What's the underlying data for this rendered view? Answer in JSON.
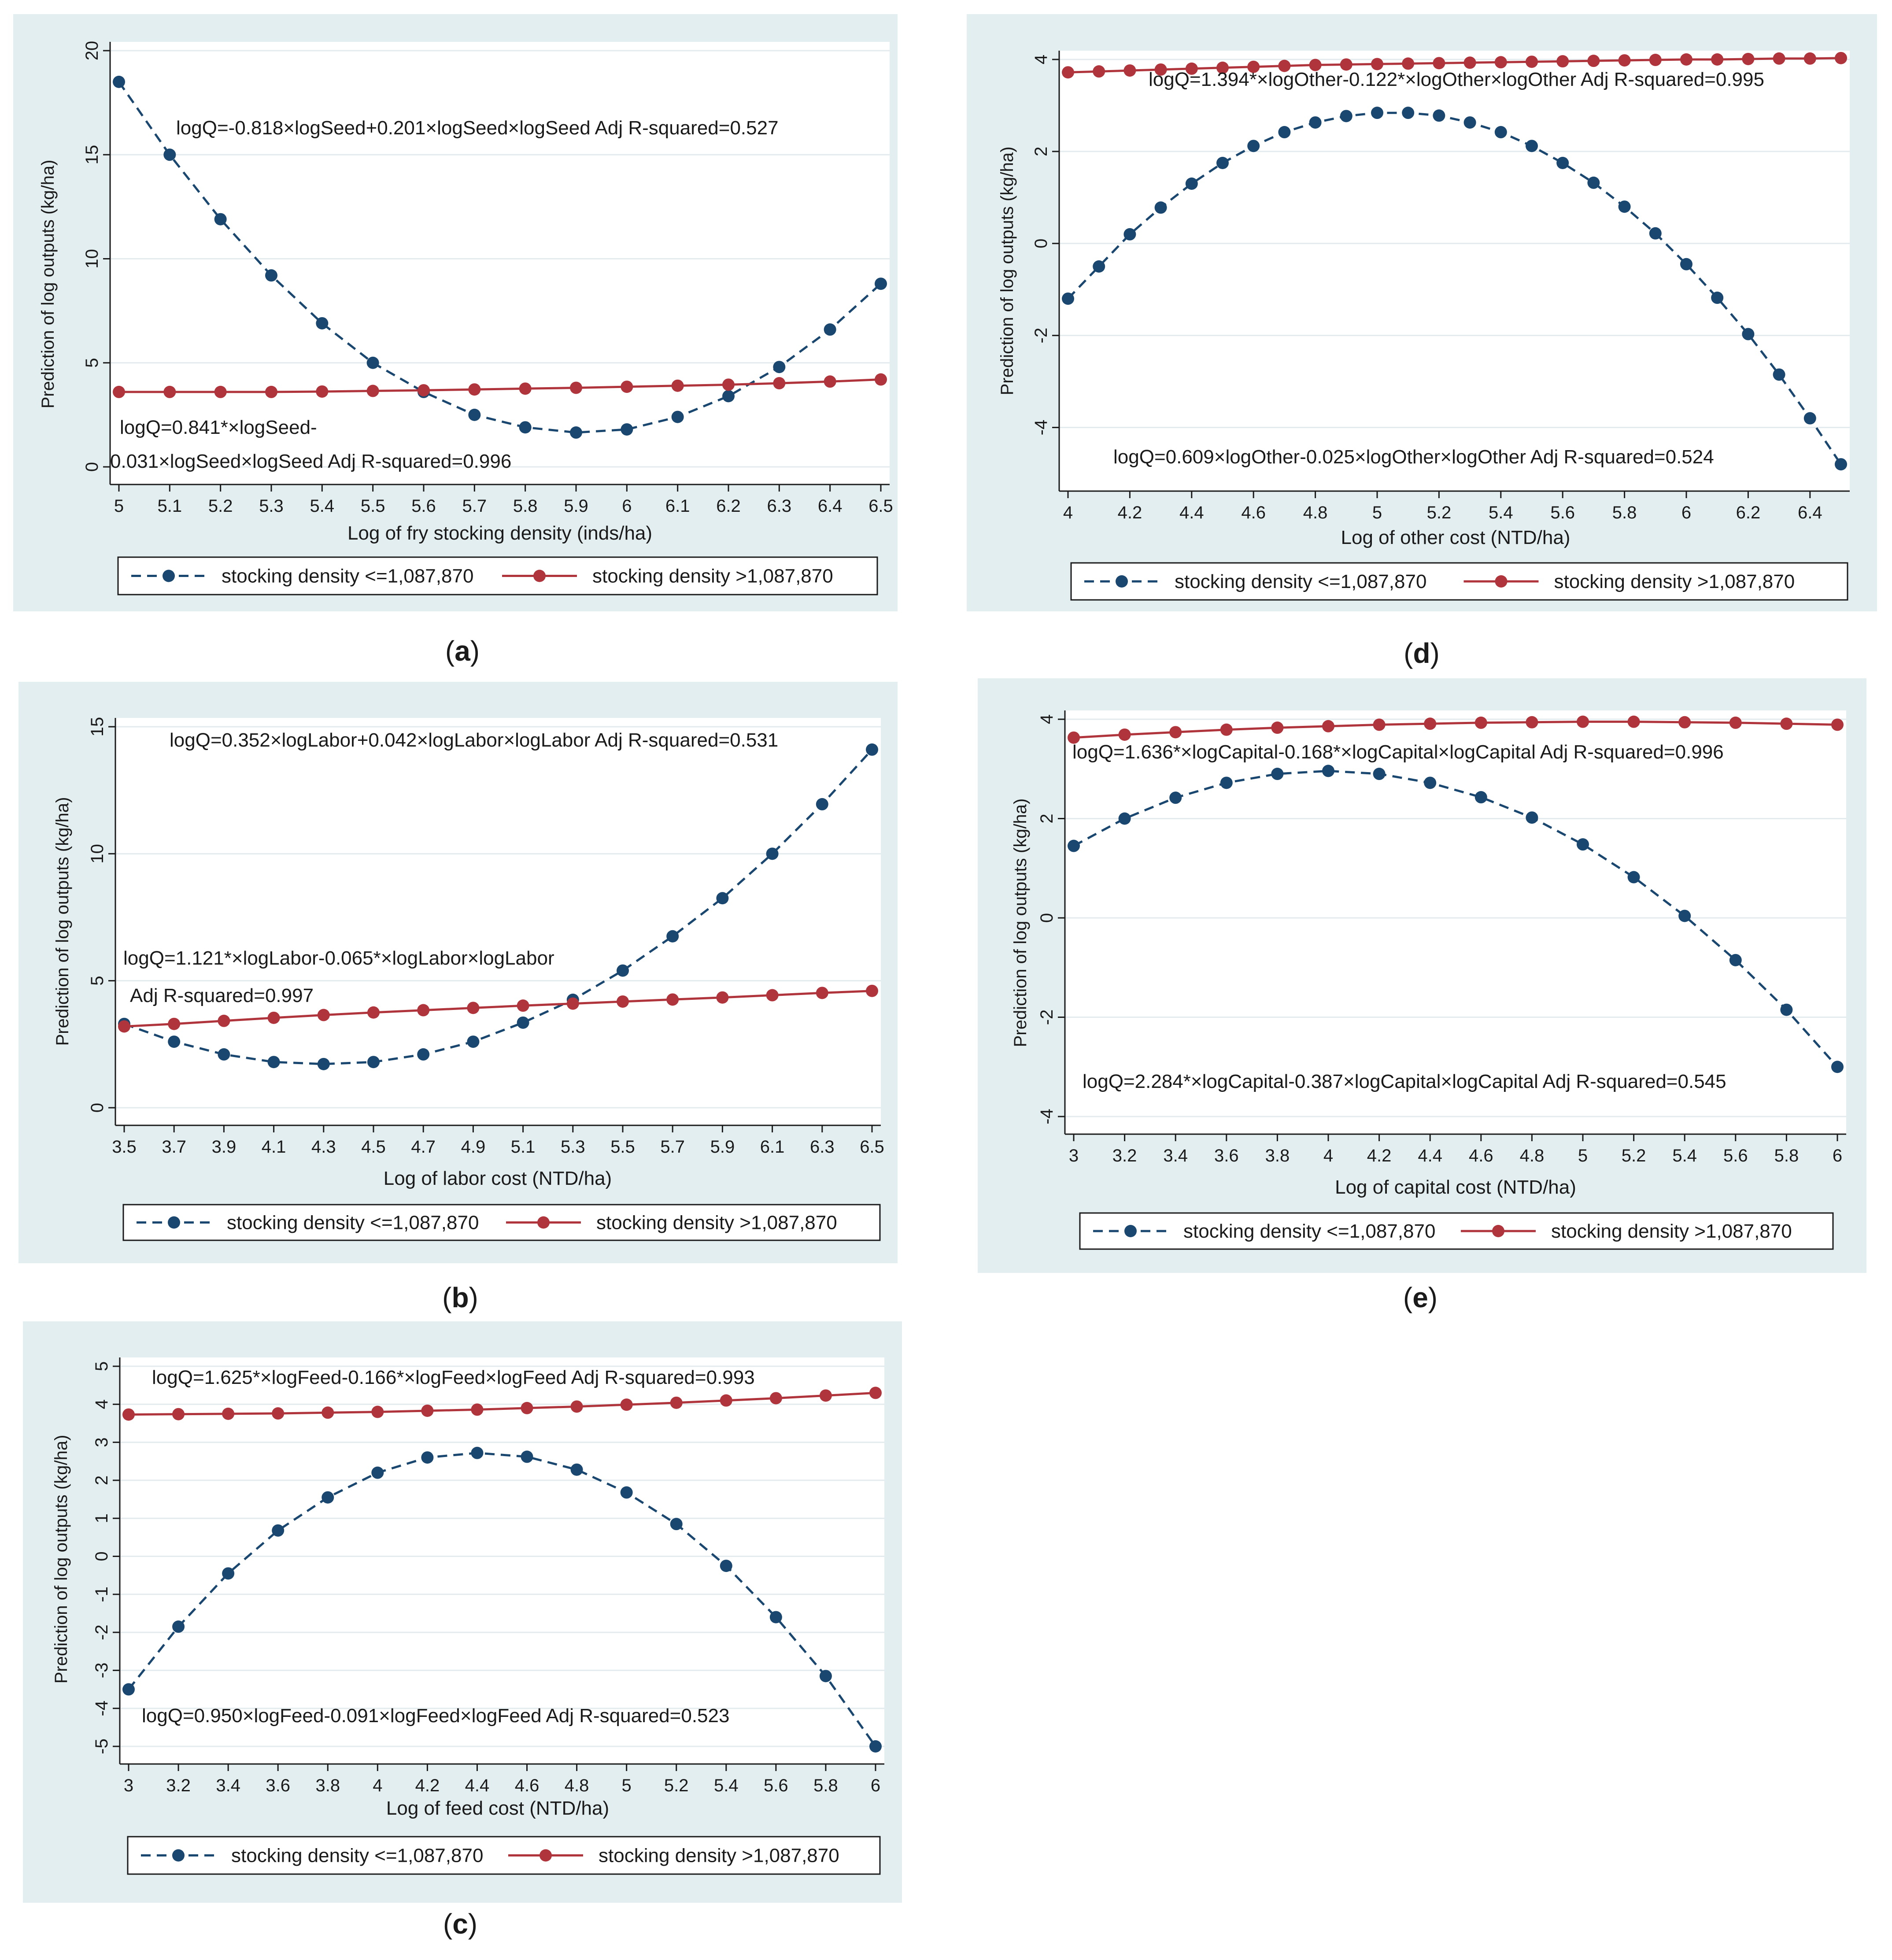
{
  "colors": {
    "panel_bg": "#e3eef1",
    "plot_bg": "#ffffff",
    "grid": "#e3ebee",
    "dark_series": "#1a476f",
    "red_series": "#b0343c",
    "text": "#1a1a1a"
  },
  "chart_data": [
    {
      "id": "a",
      "type": "line",
      "caption": "a",
      "xlabel": "Log of fry stocking density (inds/ha)",
      "ylabel": "Prediction of log outputs (kg/ha)",
      "xlim": [
        5,
        6.5
      ],
      "ylim": [
        0,
        20
      ],
      "xticks": [
        "5",
        "5.1",
        "5.2",
        "5.3",
        "5.4",
        "5.5",
        "5.6",
        "5.7",
        "5.8",
        "5.9",
        "6",
        "6.1",
        "6.2",
        "6.3",
        "6.4",
        "6.5"
      ],
      "yticks": [
        "0",
        "5",
        "10",
        "15",
        "20"
      ],
      "x": [
        5,
        5.1,
        5.2,
        5.3,
        5.4,
        5.5,
        5.6,
        5.7,
        5.8,
        5.9,
        6,
        6.1,
        6.2,
        6.3,
        6.4,
        6.5
      ],
      "series": [
        {
          "name": "stocking density <=1,087,870",
          "style": "dashed",
          "values": [
            18.5,
            15.0,
            11.9,
            9.2,
            6.9,
            5.0,
            3.6,
            2.5,
            1.9,
            1.65,
            1.8,
            2.4,
            3.4,
            4.8,
            6.6,
            8.8
          ]
        },
        {
          "name": "stocking density >1,087,870",
          "style": "solid",
          "values": [
            3.6,
            3.6,
            3.6,
            3.6,
            3.62,
            3.65,
            3.68,
            3.72,
            3.76,
            3.8,
            3.85,
            3.9,
            3.95,
            4.02,
            4.1,
            4.2
          ]
        }
      ],
      "annotations": [
        {
          "text": "logQ=-0.818×logSeed+0.201×logSeed×logSeed  Adj R-squared=0.527"
        },
        {
          "text": "logQ=0.841*×logSeed-"
        },
        {
          "text": "0.031×logSeed×logSeed   Adj R-squared=0.996"
        }
      ]
    },
    {
      "id": "d",
      "type": "line",
      "caption": "d",
      "xlabel": "Log of other cost (NTD/ha)",
      "ylabel": "Prediction of log outputs (kg/ha)",
      "xlim": [
        4,
        6.5
      ],
      "ylim": [
        -5,
        4
      ],
      "xticks": [
        "4",
        "4.2",
        "4.4",
        "4.6",
        "4.8",
        "5",
        "5.2",
        "5.4",
        "5.6",
        "5.8",
        "6",
        "6.2",
        "6.4"
      ],
      "yticks": [
        "-4",
        "-2",
        "0",
        "2",
        "4"
      ],
      "x": [
        4,
        4.1,
        4.2,
        4.3,
        4.4,
        4.5,
        4.6,
        4.7,
        4.8,
        4.9,
        5,
        5.1,
        5.2,
        5.3,
        5.4,
        5.5,
        5.6,
        5.7,
        5.8,
        5.9,
        6,
        6.1,
        6.2,
        6.3,
        6.4,
        6.5
      ],
      "series": [
        {
          "name": "stocking density <=1,087,870",
          "style": "dashed",
          "values": [
            -1.2,
            -0.5,
            0.2,
            0.78,
            1.3,
            1.75,
            2.12,
            2.42,
            2.63,
            2.77,
            2.84,
            2.84,
            2.78,
            2.63,
            2.42,
            2.12,
            1.75,
            1.32,
            0.8,
            0.22,
            -0.45,
            -1.18,
            -1.97,
            -2.85,
            -3.8,
            -4.8
          ]
        },
        {
          "name": "stocking density >1,087,870",
          "style": "solid",
          "values": [
            3.72,
            3.74,
            3.76,
            3.78,
            3.8,
            3.82,
            3.84,
            3.86,
            3.88,
            3.89,
            3.9,
            3.91,
            3.92,
            3.93,
            3.94,
            3.95,
            3.96,
            3.97,
            3.98,
            3.99,
            4.0,
            4.0,
            4.01,
            4.02,
            4.02,
            4.03
          ]
        }
      ],
      "annotations": [
        {
          "text": "logQ=1.394*×logOther-0.122*×logOther×logOther  Adj R-squared=0.995"
        },
        {
          "text": "logQ=0.609×logOther-0.025×logOther×logOther  Adj R-squared=0.524"
        }
      ]
    },
    {
      "id": "b",
      "type": "line",
      "caption": "b",
      "xlabel": "Log of labor cost (NTD/ha)",
      "ylabel": "Prediction of log outputs (kg/ha)",
      "xlim": [
        3.5,
        6.5
      ],
      "ylim": [
        0,
        15
      ],
      "xticks": [
        "3.5",
        "3.7",
        "3.9",
        "4.1",
        "4.3",
        "4.5",
        "4.7",
        "4.9",
        "5.1",
        "5.3",
        "5.5",
        "5.7",
        "5.9",
        "6.1",
        "6.3",
        "6.5"
      ],
      "yticks": [
        "0",
        "5",
        "10",
        "15"
      ],
      "x": [
        3.5,
        3.7,
        3.9,
        4.1,
        4.3,
        4.5,
        4.7,
        4.9,
        5.1,
        5.3,
        5.5,
        5.7,
        5.9,
        6.1,
        6.3,
        6.5
      ],
      "series": [
        {
          "name": "stocking density <=1,087,870",
          "style": "dashed",
          "values": [
            3.3,
            2.6,
            2.1,
            1.8,
            1.72,
            1.8,
            2.1,
            2.6,
            3.35,
            4.25,
            5.4,
            6.75,
            8.25,
            10.0,
            11.95,
            14.1
          ]
        },
        {
          "name": "stocking density >1,087,870",
          "style": "solid",
          "values": [
            3.2,
            3.3,
            3.42,
            3.54,
            3.65,
            3.75,
            3.84,
            3.93,
            4.02,
            4.1,
            4.18,
            4.26,
            4.34,
            4.43,
            4.52,
            4.6
          ]
        }
      ],
      "annotations": [
        {
          "text": "logQ=0.352×logLabor+0.042×logLabor×logLabor  Adj R-squared=0.531"
        },
        {
          "text": "logQ=1.121*×logLabor-0.065*×logLabor×logLabor"
        },
        {
          "text": "Adj R-squared=0.997"
        }
      ]
    },
    {
      "id": "e",
      "type": "line",
      "caption": "e",
      "xlabel": "Log of capital cost (NTD/ha)",
      "ylabel": "Prediction of log outputs (kg/ha)",
      "xlim": [
        3,
        6
      ],
      "ylim": [
        -4,
        4
      ],
      "xticks": [
        "3",
        "3.2",
        "3.4",
        "3.6",
        "3.8",
        "4",
        "4.2",
        "4.4",
        "4.6",
        "4.8",
        "5",
        "5.2",
        "5.4",
        "5.6",
        "5.8",
        "6"
      ],
      "yticks": [
        "-4",
        "-2",
        "0",
        "2",
        "4"
      ],
      "x": [
        3,
        3.2,
        3.4,
        3.6,
        3.8,
        4,
        4.2,
        4.4,
        4.6,
        4.8,
        5,
        5.2,
        5.4,
        5.6,
        5.8,
        6
      ],
      "series": [
        {
          "name": "stocking density <=1,087,870",
          "style": "dashed",
          "values": [
            1.45,
            2.0,
            2.42,
            2.72,
            2.9,
            2.96,
            2.9,
            2.72,
            2.43,
            2.02,
            1.48,
            0.82,
            0.04,
            -0.85,
            -1.85,
            -3.0
          ]
        },
        {
          "name": "stocking density >1,087,870",
          "style": "solid",
          "values": [
            3.63,
            3.69,
            3.74,
            3.79,
            3.83,
            3.86,
            3.89,
            3.91,
            3.93,
            3.94,
            3.95,
            3.95,
            3.94,
            3.93,
            3.91,
            3.89
          ]
        }
      ],
      "annotations": [
        {
          "text": "logQ=1.636*×logCapital-0.168*×logCapital×logCapital  Adj R-squared=0.996"
        },
        {
          "text": "logQ=2.284*×logCapital-0.387×logCapital×logCapital  Adj R-squared=0.545"
        }
      ]
    },
    {
      "id": "c",
      "type": "line",
      "caption": "c",
      "xlabel": "Log of feed cost (NTD/ha)",
      "ylabel": "Prediction of log outputs (kg/ha)",
      "xlim": [
        3,
        6
      ],
      "ylim": [
        -5,
        5
      ],
      "xticks": [
        "3",
        "3.2",
        "3.4",
        "3.6",
        "3.8",
        "4",
        "4.2",
        "4.4",
        "4.6",
        "4.8",
        "5",
        "5.2",
        "5.4",
        "5.6",
        "5.8",
        "6"
      ],
      "yticks": [
        "-5",
        "-4",
        "-3",
        "-2",
        "-1",
        "0",
        "1",
        "2",
        "3",
        "4",
        "5"
      ],
      "x": [
        3,
        3.2,
        3.4,
        3.6,
        3.8,
        4,
        4.2,
        4.4,
        4.6,
        4.8,
        5,
        5.2,
        5.4,
        5.6,
        5.8,
        6
      ],
      "series": [
        {
          "name": "stocking density <=1,087,870",
          "style": "dashed",
          "values": [
            -3.5,
            -1.85,
            -0.45,
            0.68,
            1.55,
            2.2,
            2.6,
            2.72,
            2.62,
            2.28,
            1.68,
            0.85,
            -0.25,
            -1.6,
            -3.15,
            -5.0
          ]
        },
        {
          "name": "stocking density >1,087,870",
          "style": "solid",
          "values": [
            3.73,
            3.74,
            3.75,
            3.76,
            3.78,
            3.8,
            3.83,
            3.86,
            3.9,
            3.94,
            3.99,
            4.04,
            4.1,
            4.16,
            4.23,
            4.3
          ]
        }
      ],
      "annotations": [
        {
          "text": "logQ=1.625*×logFeed-0.166*×logFeed×logFeed  Adj R-squared=0.993"
        },
        {
          "text": "logQ=0.950×logFeed-0.091×logFeed×logFeed  Adj R-squared=0.523"
        }
      ]
    }
  ]
}
